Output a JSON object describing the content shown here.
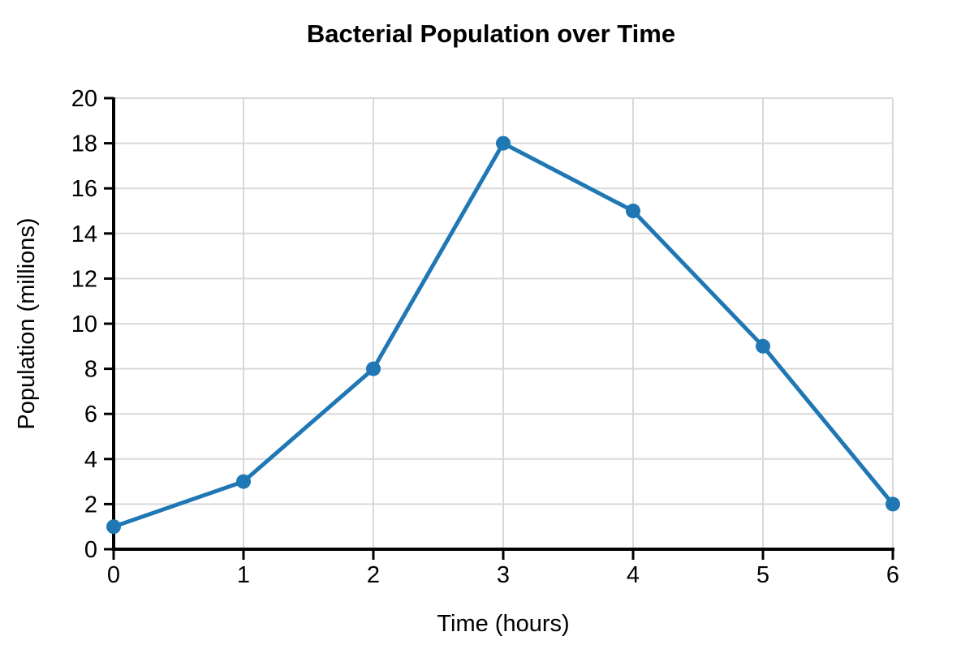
{
  "chart_data": {
    "type": "line",
    "title": "Bacterial Population over Time",
    "xlabel": "Time (hours)",
    "ylabel": "Population (millions)",
    "x": [
      0,
      1,
      2,
      3,
      4,
      5,
      6
    ],
    "y": [
      1,
      3,
      8,
      18,
      15,
      9,
      2
    ],
    "xlim": [
      0,
      6
    ],
    "ylim": [
      0,
      20
    ],
    "x_ticks": [
      0,
      1,
      2,
      3,
      4,
      5,
      6
    ],
    "y_ticks": [
      0,
      2,
      4,
      6,
      8,
      10,
      12,
      14,
      16,
      18,
      20
    ],
    "grid": true,
    "legend": "none",
    "marker": "circle",
    "colors": {
      "line": "#1f77b4",
      "marker": "#1f77b4",
      "grid": "#d9d9d9",
      "axis": "#000000",
      "text": "#000000",
      "background": "#ffffff"
    }
  }
}
